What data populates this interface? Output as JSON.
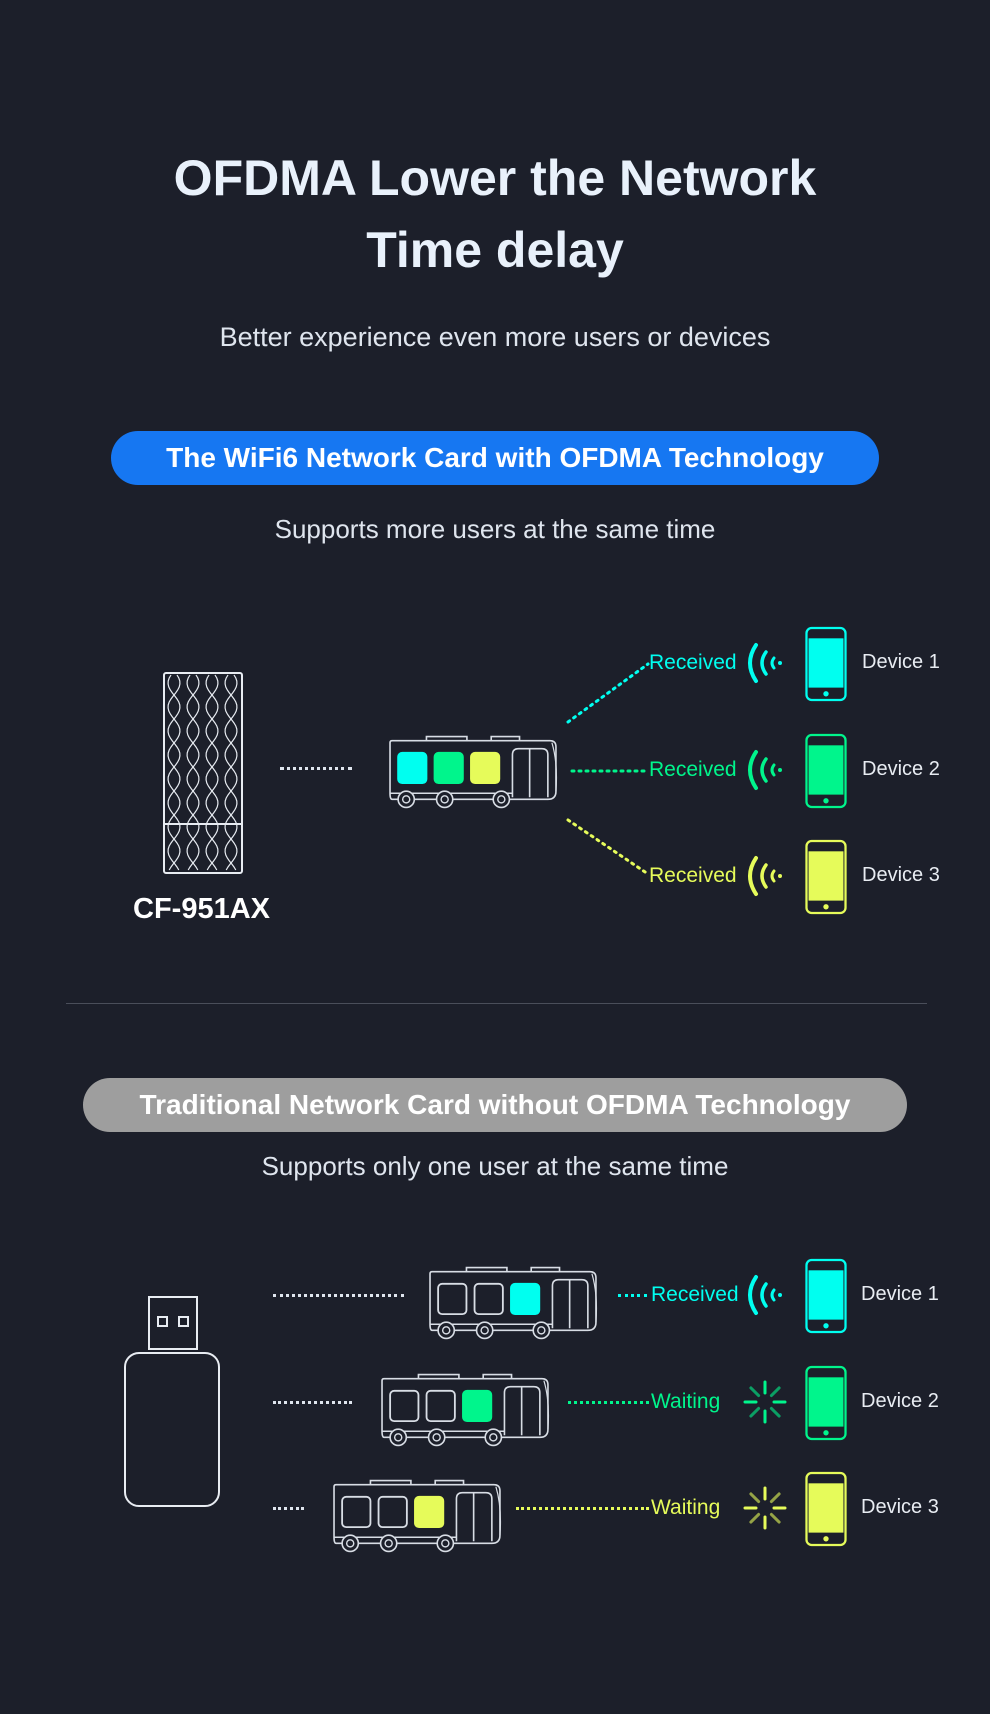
{
  "header": {
    "title_line1": "OFDMA Lower the Network",
    "title_line2": "Time delay",
    "subtitle": "Better experience even more users or devices"
  },
  "colors": {
    "background": "#1c1f2a",
    "accent_blue": "#1677f2",
    "gray_pill": "#9e9e9e",
    "device1": "#00fff0",
    "device2": "#00f58c",
    "device3": "#e6fb5a"
  },
  "ofdma_section": {
    "badge": "The WiFi6 Network Card with OFDMA Technology",
    "caption": "Supports more users at the same time",
    "product_label": "CF-951AX",
    "rows": [
      {
        "status": "Received",
        "device": "Device 1",
        "icon": "wifi-signal-icon"
      },
      {
        "status": "Received",
        "device": "Device 2",
        "icon": "wifi-signal-icon"
      },
      {
        "status": "Received",
        "device": "Device 3",
        "icon": "wifi-signal-icon"
      }
    ]
  },
  "traditional_section": {
    "badge": "Traditional Network Card without OFDMA Technology",
    "caption": "Supports only one user at the same time",
    "rows": [
      {
        "status": "Received",
        "device": "Device 1",
        "icon": "wifi-signal-icon"
      },
      {
        "status": "Waiting",
        "device": "Device 2",
        "icon": "loading-spinner-icon"
      },
      {
        "status": "Waiting",
        "device": "Device 3",
        "icon": "loading-spinner-icon"
      }
    ]
  }
}
